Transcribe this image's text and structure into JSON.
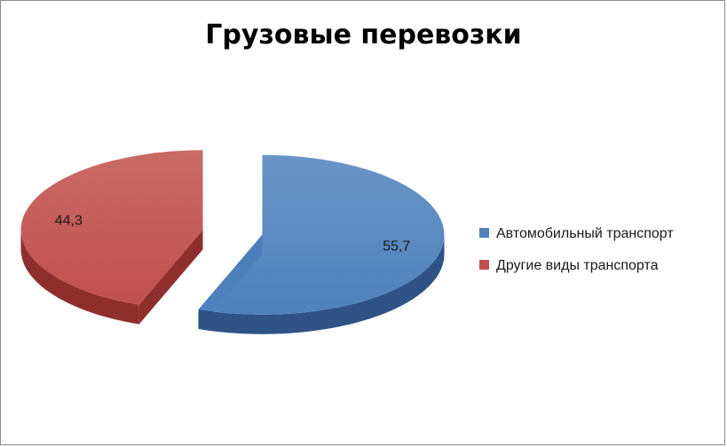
{
  "chart_data": {
    "type": "pie",
    "title": "Грузовые перевозки",
    "categories": [
      "Автомобильный транспорт",
      "Другие виды транспорта"
    ],
    "values": [
      55.7,
      44.3
    ],
    "value_labels": [
      "55,7",
      "44,3"
    ],
    "colors": [
      "#4f81bd",
      "#c0504d"
    ],
    "side_colors": [
      "#2f5287",
      "#8f2f2d"
    ],
    "exploded": true,
    "three_d": true,
    "legend_position": "right"
  }
}
